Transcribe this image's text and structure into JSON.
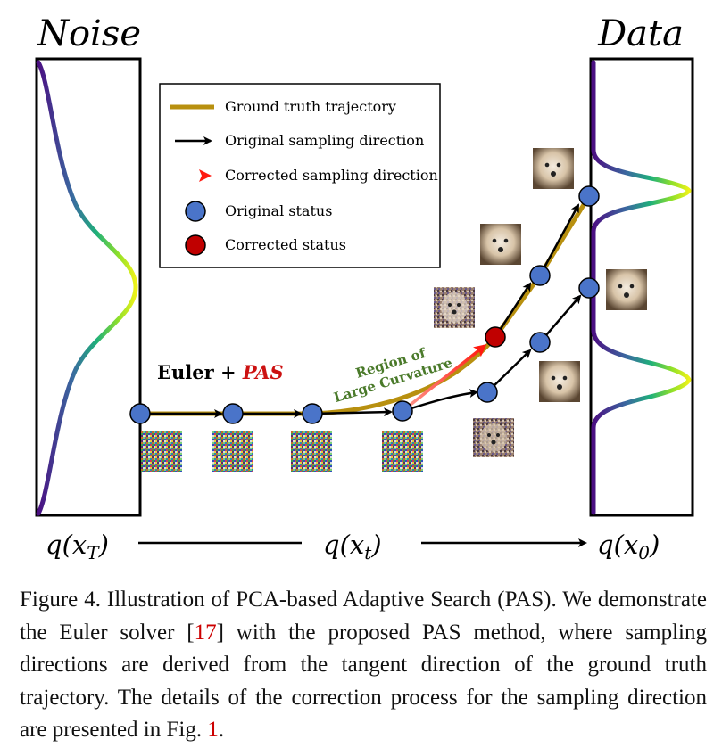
{
  "panels": {
    "noise_title": "Noise",
    "data_title": "Data"
  },
  "legend": {
    "items": [
      {
        "label": "Ground truth trajectory",
        "kind": "gold-line"
      },
      {
        "label": "Original sampling direction",
        "kind": "black-arrow"
      },
      {
        "label": "Corrected sampling direction",
        "kind": "red-arrow"
      },
      {
        "label": "Original status",
        "kind": "blue-dot"
      },
      {
        "label": "Corrected status",
        "kind": "red-dot"
      }
    ]
  },
  "labels": {
    "method_prefix": "Euler + ",
    "method_name": "PAS",
    "region_line1": "Region of",
    "region_line2": "Large Curvature"
  },
  "axis": {
    "start_base": "q(x",
    "start_sub": "T",
    "mid_base": "q(x",
    "mid_sub": "t",
    "end_base": "q(x",
    "end_sub": "0",
    "close": ")"
  },
  "caption": {
    "text_1": "Figure 4. Illustration of PCA-based Adaptive Search (PAS). We demonstrate the Euler solver [",
    "ref_1": "17",
    "text_2": "] with the proposed PAS method, where sampling directions are derived from the tangent direction of the ground truth trajectory. The details of the correction process for the sampling direction are presented in Fig. ",
    "ref_2": "1",
    "text_3": "."
  },
  "colors": {
    "gold": "#b8900f",
    "blue": "#4a74c9",
    "red_dot": "#c00000",
    "red_arrow": "#ff2a1a",
    "black": "#000000"
  }
}
